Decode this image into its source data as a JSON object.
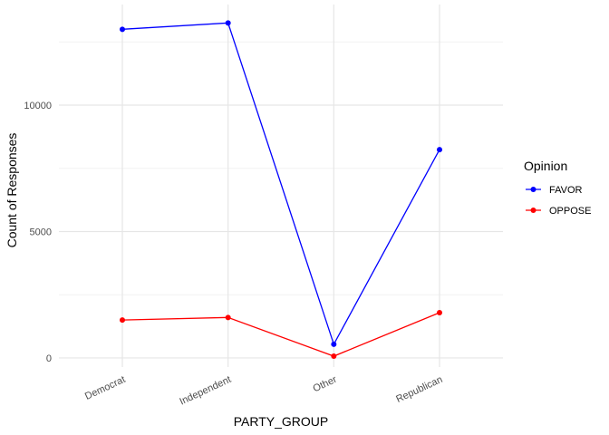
{
  "chart_data": {
    "type": "line",
    "x_label": "PARTY_GROUP",
    "y_label": "Count of Responses",
    "categories": [
      "Democrat",
      "Independent",
      "Other",
      "Republican"
    ],
    "series": [
      {
        "name": "FAVOR",
        "color": "#0000ff",
        "values": [
          13000,
          13250,
          540,
          8240
        ]
      },
      {
        "name": "OPPOSE",
        "color": "#ff0000",
        "values": [
          1500,
          1600,
          70,
          1790
        ]
      }
    ],
    "ylim": [
      -360,
      13980
    ],
    "yticks": [
      0,
      5000,
      10000
    ],
    "minor_yticks": [
      2500,
      7500,
      12500
    ],
    "grid": true,
    "legend_title": "Opinion",
    "legend_position": "right"
  }
}
